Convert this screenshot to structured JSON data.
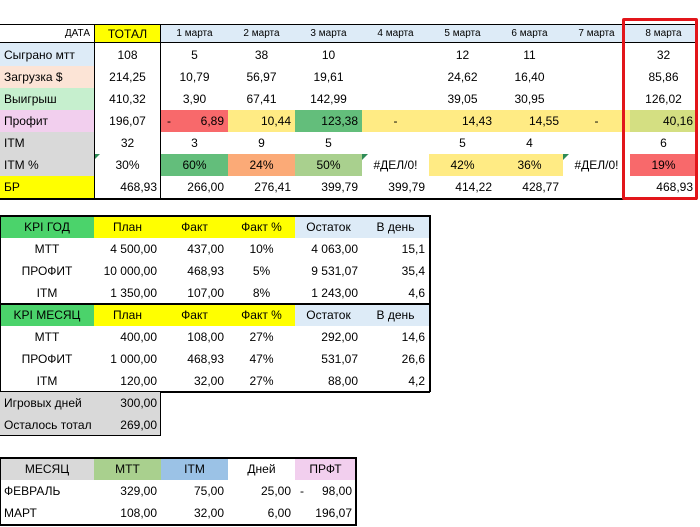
{
  "main": {
    "header": [
      "ДАТА",
      "ТОТАЛ",
      "1 марта",
      "2 марта",
      "3 марта",
      "4 марта",
      "5 марта",
      "6 марта",
      "7 марта",
      "8 марта"
    ],
    "rows": [
      {
        "label": "Сыграно мтт",
        "cells": [
          "108",
          "5",
          "38",
          "10",
          "",
          "12",
          "11",
          "",
          "32"
        ]
      },
      {
        "label": "Загрузка $",
        "cells": [
          "214,25",
          "10,79",
          "56,97",
          "19,61",
          "",
          "24,62",
          "16,40",
          "",
          "85,86"
        ]
      },
      {
        "label": "Выигрыш",
        "cells": [
          "410,32",
          "3,90",
          "67,41",
          "142,99",
          "",
          "39,05",
          "30,95",
          "",
          "126,02"
        ]
      },
      {
        "label": "Профит",
        "cells": [
          "196,07",
          "6,89",
          "10,44",
          "123,38",
          "-",
          "14,43",
          "14,55",
          "-",
          "40,16"
        ],
        "minus_prefix": "-"
      },
      {
        "label": "ITM",
        "cells": [
          "32",
          "3",
          "9",
          "5",
          "",
          "5",
          "4",
          "",
          "6"
        ]
      },
      {
        "label": "ITM %",
        "cells": [
          "30%",
          "60%",
          "24%",
          "50%",
          "#ДЕЛ/0!",
          "42%",
          "36%",
          "#ДЕЛ/0!",
          "19%"
        ]
      },
      {
        "label": "БР",
        "cells": [
          "468,93",
          "266,00",
          "276,41",
          "399,79",
          "399,79",
          "414,22",
          "428,77",
          "",
          "468,93"
        ]
      }
    ]
  },
  "kpi_year": {
    "header": [
      "KPI ГОД",
      "План",
      "Факт",
      "Факт %",
      "Остаток",
      "В день"
    ],
    "rows": [
      [
        "МТТ",
        "4 500,00",
        "437,00",
        "10%",
        "4 063,00",
        "15,1"
      ],
      [
        "ПРОФИТ",
        "10 000,00",
        "468,93",
        "5%",
        "9 531,07",
        "35,4"
      ],
      [
        "ITM",
        "1 350,00",
        "107,00",
        "8%",
        "1 243,00",
        "4,6"
      ]
    ]
  },
  "kpi_month": {
    "header": [
      "KPI МЕСЯЦ",
      "План",
      "Факт",
      "Факт %",
      "Остаток",
      "В день"
    ],
    "rows": [
      [
        "МТТ",
        "400,00",
        "108,00",
        "27%",
        "292,00",
        "14,6"
      ],
      [
        "ПРОФИТ",
        "1 000,00",
        "468,93",
        "47%",
        "531,07",
        "26,6"
      ],
      [
        "ITM",
        "120,00",
        "32,00",
        "27%",
        "88,00",
        "4,2"
      ]
    ]
  },
  "days": {
    "rows": [
      [
        "Игровых дней",
        "300,00"
      ],
      [
        "Осталось тотал",
        "269,00"
      ]
    ]
  },
  "month": {
    "header": [
      "МЕСЯЦ",
      "МТТ",
      "ITM",
      "Дней",
      "ПРФТ"
    ],
    "rows": [
      [
        "ФЕВРАЛЬ",
        "329,00",
        "75,00",
        "25,00",
        "98,00"
      ],
      [
        "МАРТ",
        "108,00",
        "32,00",
        "6,00",
        "196,07"
      ]
    ],
    "feb_minus": "-"
  },
  "colors": {
    "yellow": "#ffff00",
    "blue_header": "#ddebf7",
    "red": "#f8696b",
    "light_red": "#fbaa77",
    "green": "#63be7b",
    "light_green": "#a9d08e",
    "yellow_cf": "#ffeb84",
    "olive": "#d4df82",
    "kpi_green": "#4bd36b",
    "lavender": "#e6cff2",
    "pink": "#f2cfee",
    "highlight": "#e2151a"
  }
}
